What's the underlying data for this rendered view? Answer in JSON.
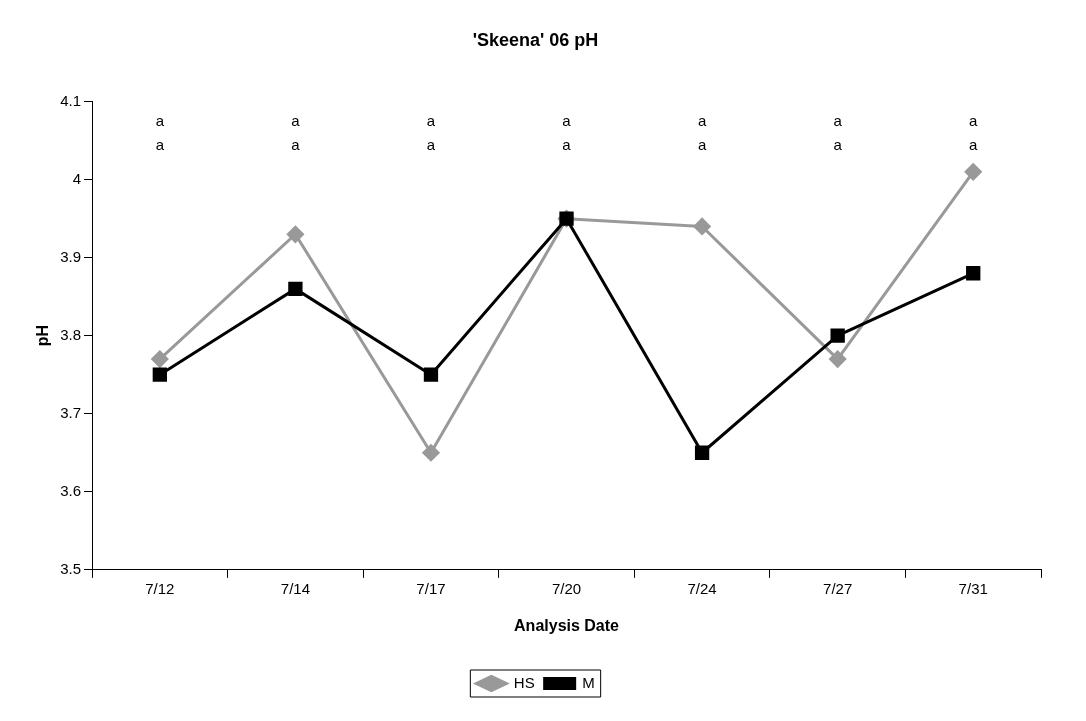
{
  "chart_data": {
    "type": "line",
    "title": "'Skeena' 06 pH",
    "xlabel": "Analysis Date",
    "ylabel": "pH",
    "categories": [
      "7/12",
      "7/14",
      "7/17",
      "7/20",
      "7/24",
      "7/27",
      "7/31"
    ],
    "series": [
      {
        "name": "HS",
        "color": "#999999",
        "marker": "diamond",
        "values": [
          3.77,
          3.93,
          3.65,
          3.95,
          3.94,
          3.77,
          4.01
        ]
      },
      {
        "name": "M",
        "color": "#000000",
        "marker": "square",
        "values": [
          3.75,
          3.86,
          3.75,
          3.95,
          3.65,
          3.8,
          3.88
        ]
      }
    ],
    "ylim": [
      3.5,
      4.1
    ],
    "yticks": [
      3.5,
      3.6,
      3.7,
      3.8,
      3.9,
      4,
      4.1
    ],
    "grid": false,
    "legend": "bottom",
    "line_style": "solid",
    "annotations": [
      "a",
      "a",
      "a",
      "a",
      "a",
      "a",
      "a",
      "a",
      "a",
      "a",
      "a",
      "a",
      "a",
      "a"
    ]
  }
}
